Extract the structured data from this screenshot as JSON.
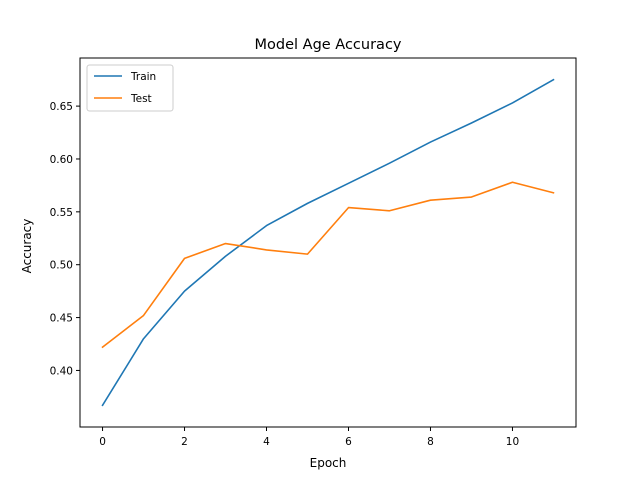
{
  "chart_data": {
    "type": "line",
    "title": "Model Age Accuracy",
    "xlabel": "Epoch",
    "ylabel": "Accuracy",
    "xlim": [
      -0.55,
      11.55
    ],
    "ylim": [
      0.3465,
      0.6955
    ],
    "xticks": [
      0,
      2,
      4,
      6,
      8,
      10
    ],
    "xtick_labels": [
      "0",
      "2",
      "4",
      "6",
      "8",
      "10"
    ],
    "yticks": [
      0.4,
      0.45,
      0.5,
      0.55,
      0.6,
      0.65
    ],
    "ytick_labels": [
      "0.40",
      "0.45",
      "0.50",
      "0.55",
      "0.60",
      "0.65"
    ],
    "grid": false,
    "legend_position": "upper left",
    "x": [
      0,
      1,
      2,
      3,
      4,
      5,
      6,
      7,
      8,
      9,
      10,
      11
    ],
    "series": [
      {
        "name": "Train",
        "color": "#1f77b4",
        "values": [
          0.367,
          0.43,
          0.475,
          0.508,
          0.537,
          0.558,
          0.577,
          0.596,
          0.616,
          0.634,
          0.653,
          0.675
        ]
      },
      {
        "name": "Test",
        "color": "#ff7f0e",
        "values": [
          0.422,
          0.452,
          0.506,
          0.52,
          0.514,
          0.51,
          0.554,
          0.551,
          0.561,
          0.564,
          0.578,
          0.568
        ]
      }
    ]
  }
}
